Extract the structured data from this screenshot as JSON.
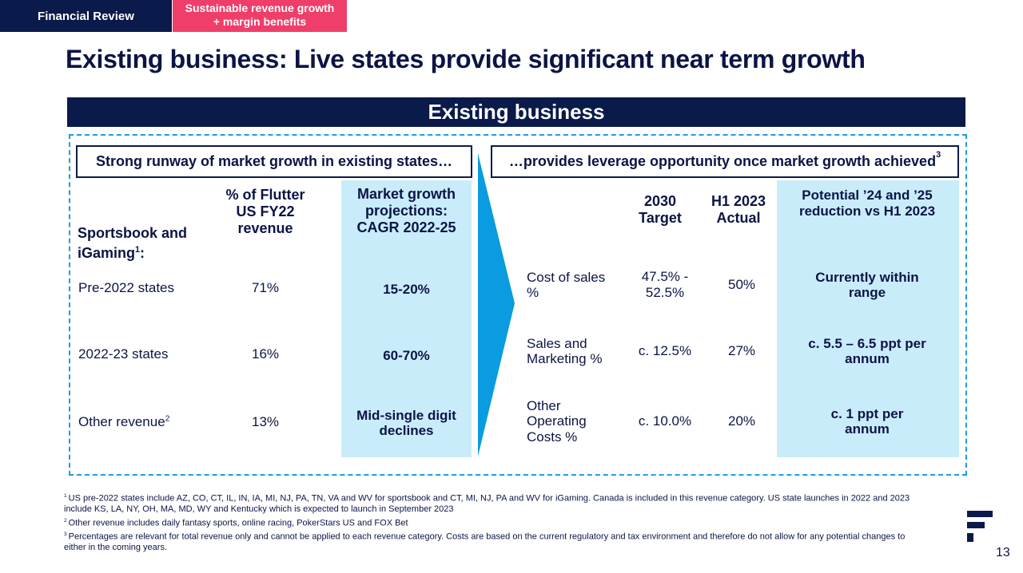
{
  "header": {
    "section": "Financial Review",
    "tag": "Sustainable revenue growth + margin benefits"
  },
  "title": "Existing business: Live states provide significant near term growth",
  "banner": "Existing business",
  "left": {
    "heading": "Strong runway of market growth in existing states…",
    "row_head": {
      "text": "Sportsbook and iGaming",
      "sup": "1",
      "suffix": ":"
    },
    "columns": [
      "% of Flutter US FY22 revenue",
      "Market growth projections: CAGR 2022-25"
    ],
    "rows": [
      {
        "label": "Pre-2022 states",
        "share": "71%",
        "growth": "15-20%"
      },
      {
        "label": "2022-23 states",
        "share": "16%",
        "growth": "60-70%"
      },
      {
        "label": "Other revenue",
        "sup": "2",
        "share": "13%",
        "growth": "Mid-single digit declines"
      }
    ]
  },
  "right": {
    "heading": "…provides leverage opportunity once market growth achieved",
    "heading_sup": "3",
    "columns": [
      "2030 Target",
      "H1 2023 Actual",
      "Potential ’24 and ’25 reduction vs H1 2023"
    ],
    "rows": [
      {
        "label": "Cost of sales %",
        "target": "47.5% - 52.5%",
        "actual": "50%",
        "reduction": "Currently within range"
      },
      {
        "label": "Sales and Marketing %",
        "target": "c. 12.5%",
        "actual": "27%",
        "reduction": "c. 5.5 – 6.5 ppt per annum"
      },
      {
        "label": "Other Operating Costs %",
        "target": "c. 10.0%",
        "actual": "20%",
        "reduction": "c. 1 ppt per annum"
      }
    ]
  },
  "footnotes": [
    {
      "marker": "1",
      "text": "US pre-2022 states include AZ, CO, CT, IL, IN, IA, MI, NJ, PA, TN, VA and WV for sportsbook and CT, MI, NJ, PA and WV for iGaming. Canada is included in this revenue category. US state launches in 2022 and 2023 include KS, LA, NY, OH, MA, MD, WY and Kentucky which is expected to launch in September 2023"
    },
    {
      "marker": "2",
      "text": "Other revenue includes daily fantasy sports, online racing, PokerStars US and FOX Bet"
    },
    {
      "marker": "3",
      "text": "Percentages are relevant for total revenue only and cannot be applied to each revenue category. Costs are based on the current regulatory and tax environment and therefore do not allow for any potential changes to either in the coming years."
    }
  ],
  "page_number": "13"
}
